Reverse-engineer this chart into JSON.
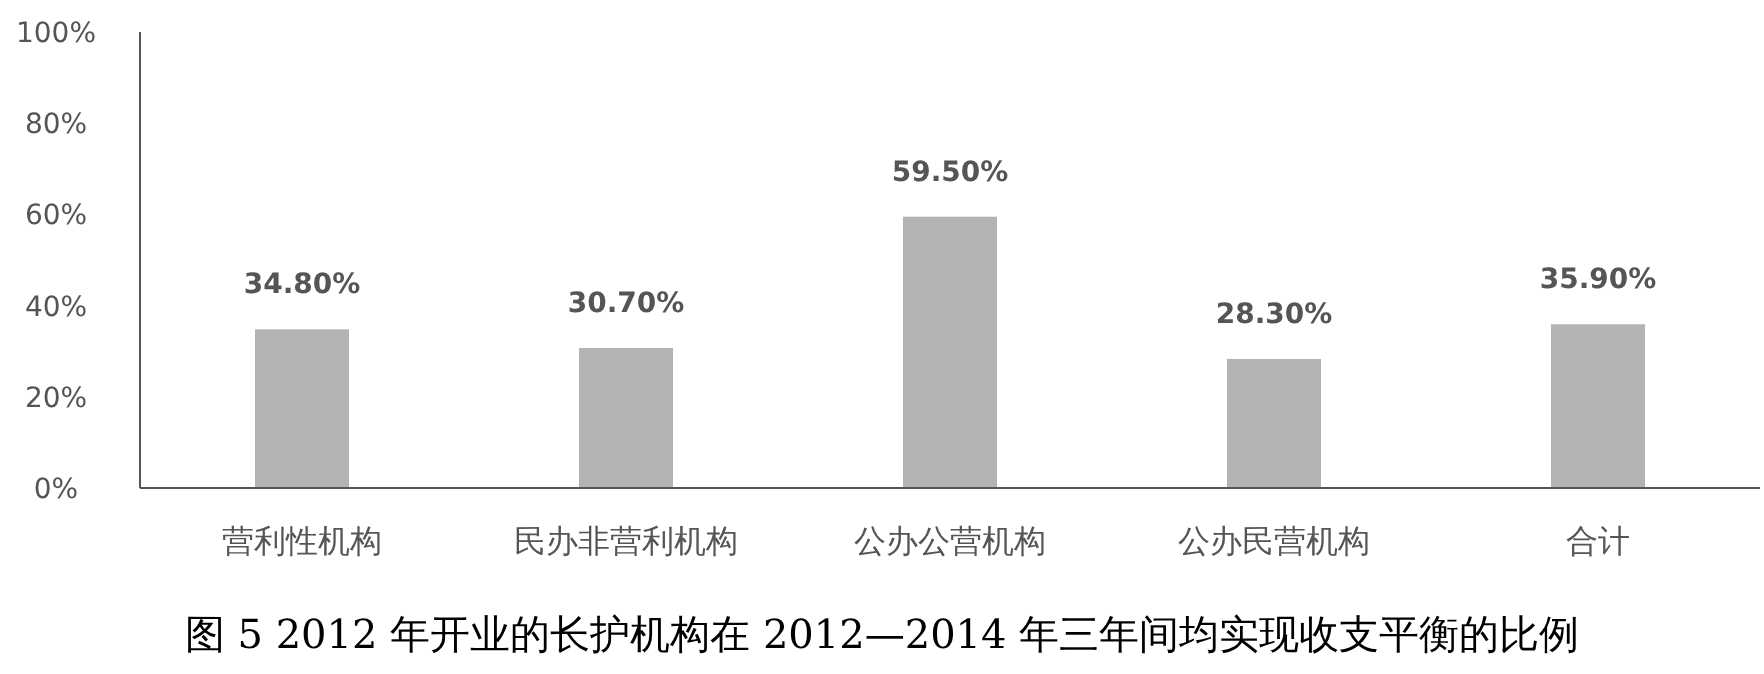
{
  "chart_data": {
    "type": "bar",
    "title": "图 5 2012 年开业的长护机构在 2012—2014 年三年间均实现收支平衡的比例",
    "categories": [
      "营利性机构",
      "民办非营利机构",
      "公办公营机构",
      "公办民营机构",
      "合计"
    ],
    "values": [
      34.8,
      30.7,
      59.5,
      28.3,
      35.9
    ],
    "value_labels": [
      "34.80%",
      "30.70%",
      "59.50%",
      "28.30%",
      "35.90%"
    ],
    "color": "#b3b3b3",
    "ylim": [
      0,
      100
    ],
    "yticks": [
      {
        "value": 0,
        "label": "0%"
      },
      {
        "value": 20,
        "label": "20%"
      },
      {
        "value": 40,
        "label": "40%"
      },
      {
        "value": 60,
        "label": "60%"
      },
      {
        "value": 80,
        "label": "80%"
      },
      {
        "value": 100,
        "label": "100%"
      }
    ],
    "grid": false
  }
}
